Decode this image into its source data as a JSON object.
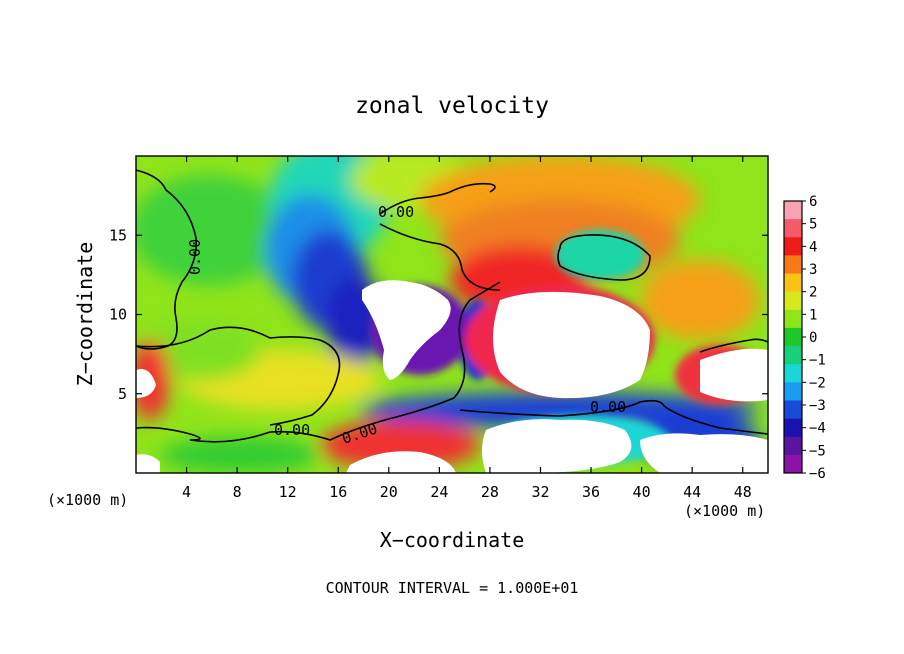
{
  "chart_data": {
    "type": "heatmap",
    "title": "zonal velocity",
    "xlabel": "X−coordinate",
    "ylabel": "Z−coordinate",
    "x_unit": "(×1000 m)",
    "x_unit_right": "(×1000 m)",
    "xlim": [
      0,
      50
    ],
    "ylim": [
      0,
      20
    ],
    "xticks": [
      "4",
      "8",
      "12",
      "16",
      "20",
      "24",
      "28",
      "32",
      "36",
      "40",
      "44",
      "48"
    ],
    "yticks": [
      "5",
      "10",
      "15"
    ],
    "colorbar": {
      "ticks": [
        "6",
        "5",
        "4",
        "3",
        "2",
        "1",
        "0",
        "−1",
        "−2",
        "−3",
        "−4",
        "−5",
        "−6"
      ],
      "colors": [
        "#f7a3b3",
        "#f55a6a",
        "#ef1a1a",
        "#f77a18",
        "#f9c214",
        "#d8e81c",
        "#8fe41a",
        "#1ec82a",
        "#18d07a",
        "#1ad6d6",
        "#1a9cf0",
        "#1a4ad8",
        "#1a12b0",
        "#5a14a0",
        "#8a14a8"
      ],
      "range": [
        -6,
        6
      ]
    },
    "contour_labels": [
      "0.00",
      "0.00",
      "0.00",
      "0.00",
      "0.00"
    ],
    "footer": "CONTOUR INTERVAL = 1.000E+01"
  }
}
